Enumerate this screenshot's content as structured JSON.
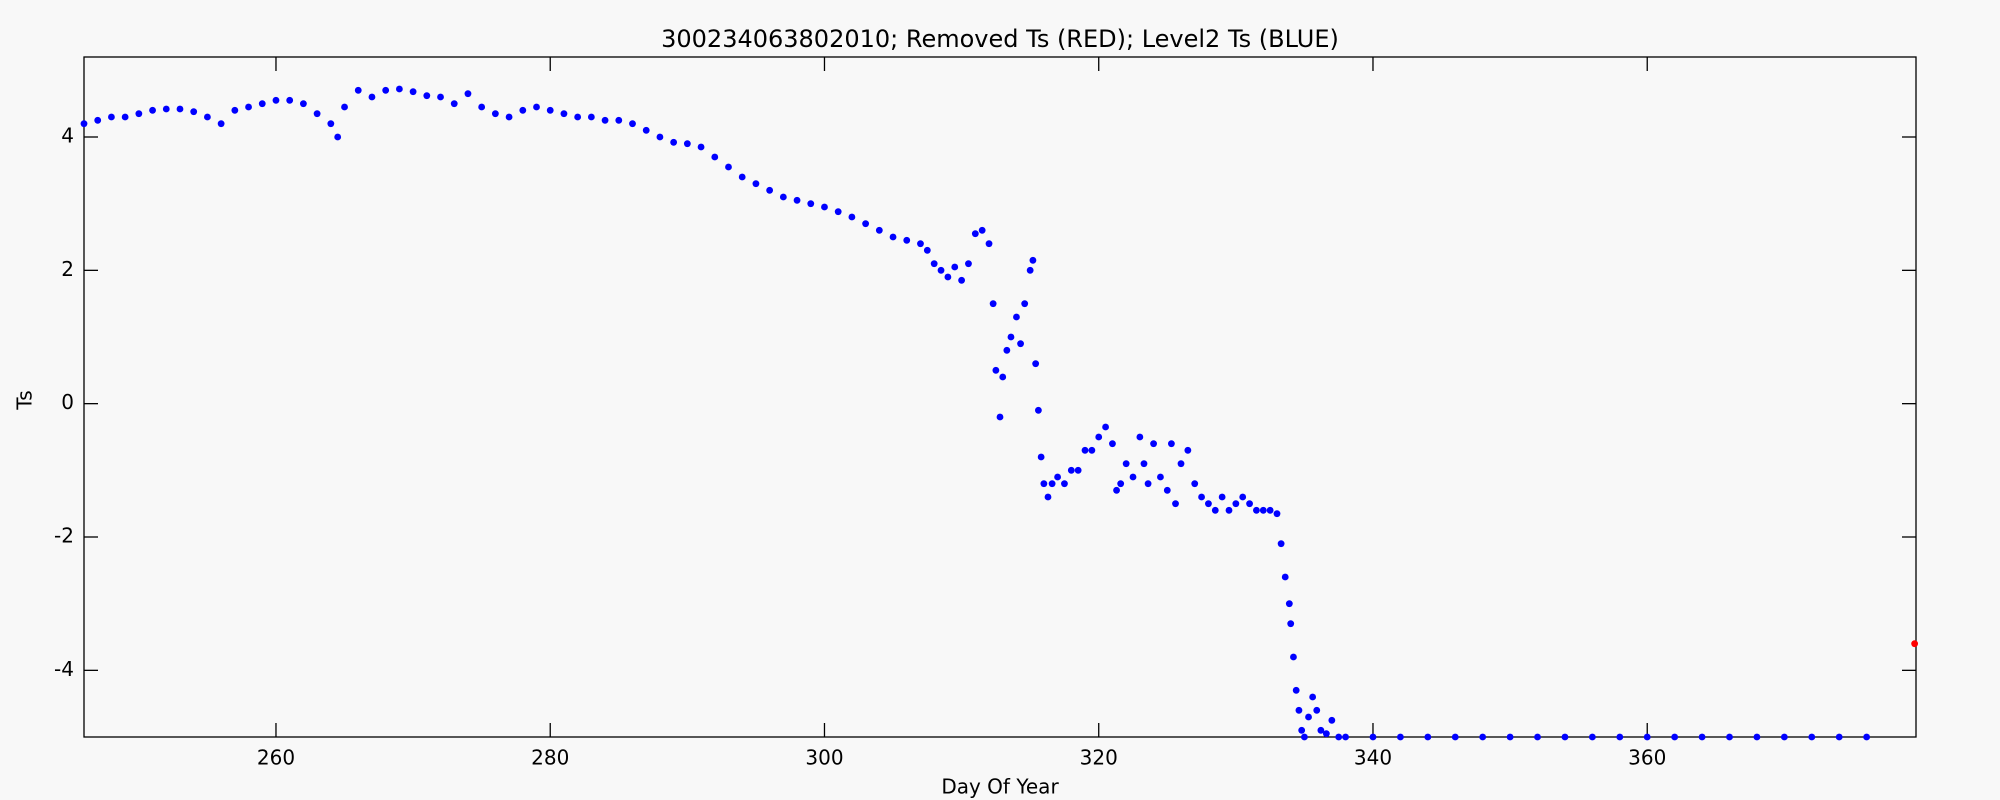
{
  "chart_data": {
    "type": "scatter",
    "title": "300234063802010; Removed Ts (RED); Level2 Ts (BLUE)",
    "x_label": "Day Of Year",
    "y_label": "Ts",
    "xlim": [
      246,
      379.6
    ],
    "ylim": [
      -5,
      5.2
    ],
    "xticks": [
      260,
      280,
      300,
      320,
      340,
      360
    ],
    "yticks": [
      -4,
      -2,
      0,
      2,
      4
    ],
    "series": [
      {
        "color": "#0000ff",
        "x": [
          246,
          247,
          248,
          249,
          250,
          251,
          252,
          253,
          254,
          255,
          256,
          257,
          258,
          259,
          260,
          261,
          262,
          263,
          264,
          264.5,
          265,
          266,
          267,
          268,
          269,
          270,
          271,
          272,
          273,
          274,
          275,
          276,
          277,
          278,
          279,
          280,
          281,
          282,
          283,
          284,
          285,
          286,
          287,
          288,
          289,
          290,
          291,
          292,
          293,
          294,
          295,
          296,
          297,
          298,
          299,
          300,
          301,
          302,
          303,
          304,
          305,
          306,
          307,
          307.5,
          308,
          308.5,
          309,
          309.5,
          310,
          310.5,
          311,
          311.5,
          312,
          312.3,
          312.5,
          312.8,
          313,
          313.3,
          313.6,
          314,
          314.3,
          314.6,
          315,
          315.2,
          315.4,
          315.6,
          315.8,
          316,
          316.3,
          316.6,
          317,
          317.5,
          318,
          318.5,
          319,
          319.5,
          320,
          320.5,
          321,
          321.3,
          321.6,
          322,
          322.5,
          323,
          323.3,
          323.6,
          324,
          324.5,
          325,
          325.3,
          325.6,
          326,
          326.5,
          327,
          327.5,
          328,
          328.5,
          329,
          329.5,
          330,
          330.5,
          331,
          331.5,
          332,
          332.5,
          333,
          333.3,
          333.6,
          333.9,
          334,
          334.2,
          334.4,
          334.6,
          334.8,
          335,
          335.3,
          335.6,
          335.9,
          336.2,
          336.6,
          337,
          337.5,
          338,
          340,
          342,
          344,
          346,
          348,
          350,
          352,
          354,
          356,
          358,
          360,
          362,
          364,
          366,
          368,
          370,
          372,
          374,
          376
        ],
        "values": [
          4.2,
          4.25,
          4.3,
          4.3,
          4.35,
          4.4,
          4.42,
          4.42,
          4.38,
          4.3,
          4.2,
          4.4,
          4.45,
          4.5,
          4.55,
          4.55,
          4.5,
          4.35,
          4.2,
          4.0,
          4.45,
          4.7,
          4.6,
          4.7,
          4.72,
          4.68,
          4.62,
          4.6,
          4.5,
          4.65,
          4.45,
          4.35,
          4.3,
          4.4,
          4.45,
          4.4,
          4.35,
          4.3,
          4.3,
          4.25,
          4.25,
          4.2,
          4.1,
          4.0,
          3.92,
          3.9,
          3.85,
          3.7,
          3.55,
          3.4,
          3.3,
          3.2,
          3.1,
          3.05,
          3.0,
          2.95,
          2.88,
          2.8,
          2.7,
          2.6,
          2.5,
          2.45,
          2.4,
          2.3,
          2.1,
          2.0,
          1.9,
          2.05,
          1.85,
          2.1,
          2.55,
          2.6,
          2.4,
          1.5,
          0.5,
          -0.2,
          0.4,
          0.8,
          1.0,
          1.3,
          0.9,
          1.5,
          2.0,
          2.15,
          0.6,
          -0.1,
          -0.8,
          -1.2,
          -1.4,
          -1.2,
          -1.1,
          -1.2,
          -1.0,
          -1.0,
          -0.7,
          -0.7,
          -0.5,
          -0.35,
          -0.6,
          -1.3,
          -1.2,
          -0.9,
          -1.1,
          -0.5,
          -0.9,
          -1.2,
          -0.6,
          -1.1,
          -1.3,
          -0.6,
          -1.5,
          -0.9,
          -0.7,
          -1.2,
          -1.4,
          -1.5,
          -1.6,
          -1.4,
          -1.6,
          -1.5,
          -1.4,
          -1.5,
          -1.6,
          -1.6,
          -1.6,
          -1.65,
          -2.1,
          -2.6,
          -3.0,
          -3.3,
          -3.8,
          -4.3,
          -4.6,
          -4.9,
          -5.0,
          -4.7,
          -4.4,
          -4.6,
          -4.9,
          -4.95,
          -4.75,
          -5.0,
          -5.0,
          -5.0,
          -5.0,
          -5.0,
          -5.0,
          -5.0,
          -5.0,
          -5.0,
          -5.0,
          -5.0,
          -5.0,
          -5.0,
          -5.0,
          -5.0,
          -5.0,
          -5.0,
          -5.0,
          -5.0,
          -5.0,
          -5.0
        ]
      },
      {
        "color": "#ff0000",
        "x": [
          379.5
        ],
        "values": [
          -3.6
        ]
      }
    ]
  }
}
